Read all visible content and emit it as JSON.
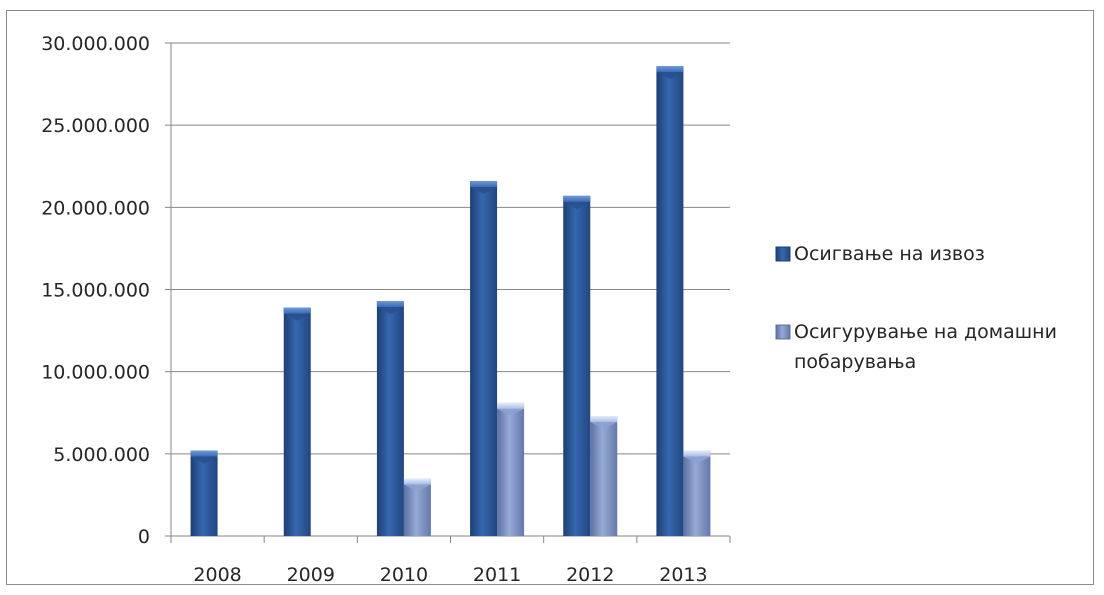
{
  "chart_data": {
    "type": "bar",
    "categories": [
      "2008",
      "2009",
      "2010",
      "2011",
      "2012",
      "2013"
    ],
    "series": [
      {
        "name": "Осигвање на извоз",
        "values": [
          5200000,
          13900000,
          14300000,
          21600000,
          20700000,
          28600000
        ],
        "color": "#2e5a9c"
      },
      {
        "name": "Осигурување на домашни побарувања",
        "name_lines": [
          "Осигурување на домашни",
          "побарувања"
        ],
        "values": [
          0,
          0,
          3500000,
          8100000,
          7300000,
          5200000
        ],
        "color": "#7d93c4"
      }
    ],
    "ylim": [
      0,
      30000000
    ],
    "yticks": [
      "0",
      "5.000.000",
      "10.000.000",
      "15.000.000",
      "20.000.000",
      "25.000.000",
      "30.000.000"
    ],
    "grid": true,
    "legend": "right"
  }
}
